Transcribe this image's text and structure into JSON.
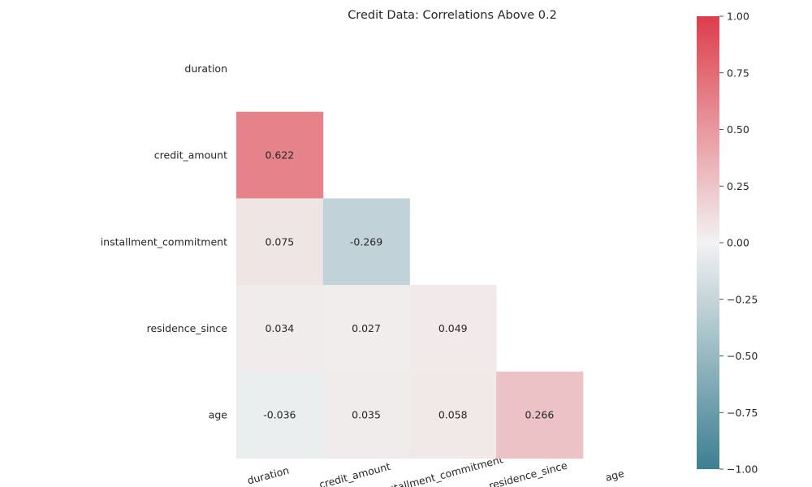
{
  "chart_data": {
    "type": "heatmap",
    "title": "Credit Data: Correlations Above 0.2",
    "variables": [
      "duration",
      "credit_amount",
      "installment_commitment",
      "residence_since",
      "age"
    ],
    "highlighted_labels": [
      "credit_amount"
    ],
    "highlight_color": "#ff0000",
    "mask": "upper-triangle-and-diagonal",
    "matrix": [
      [
        null,
        null,
        null,
        null,
        null
      ],
      [
        0.622,
        null,
        null,
        null,
        null
      ],
      [
        0.075,
        -0.269,
        null,
        null,
        null
      ],
      [
        0.034,
        0.027,
        0.049,
        null,
        null
      ],
      [
        -0.036,
        0.035,
        0.058,
        0.266,
        null
      ]
    ],
    "value_labels": [
      [
        null,
        null,
        null,
        null,
        null
      ],
      [
        "0.622",
        null,
        null,
        null,
        null
      ],
      [
        "0.075",
        "-0.269",
        null,
        null,
        null
      ],
      [
        "0.034",
        "0.027",
        "0.049",
        null,
        null
      ],
      [
        "-0.036",
        "0.035",
        "0.058",
        "0.266",
        null
      ]
    ],
    "x_tick_labels": [
      "duration",
      "credit_amount",
      "installment_commitment",
      "residence_since",
      "age"
    ],
    "y_tick_labels": [
      "duration",
      "credit_amount",
      "installment_commitment",
      "residence_since",
      "age"
    ],
    "colormap": "diverging blue-grey to white to red",
    "colormap_stops": {
      "low": "#3d7f92",
      "mid": "#f2f2f2",
      "high": "#dd3e4b"
    },
    "vmin": -1.0,
    "vmax": 1.0,
    "colorbar_ticks": [
      1.0,
      0.75,
      0.5,
      0.25,
      0.0,
      -0.25,
      -0.5,
      -0.75,
      -1.0
    ],
    "colorbar_tick_labels": [
      "1.00",
      "0.75",
      "0.50",
      "0.25",
      "0.00",
      "−0.25",
      "−0.50",
      "−0.75",
      "−1.00"
    ],
    "x_tick_rotation_deg": 15
  }
}
